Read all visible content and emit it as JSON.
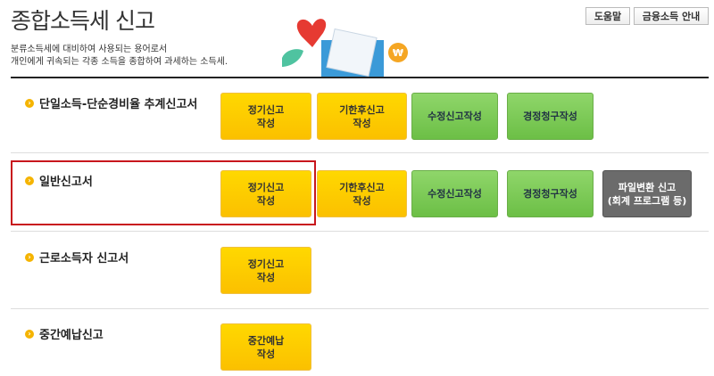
{
  "header": {
    "title": "종합소득세 신고",
    "desc_lines": [
      "분류소득세에 대비하여 사용되는 용어로서",
      "개인에게 귀속되는 각종 소득을 종합하여 과세하는 소득세."
    ],
    "help_label": "도움말",
    "finance_label": "금융소득 안내"
  },
  "sections": [
    {
      "label": "단일소득-단순경비율 추계신고서",
      "buttons": [
        "정기신고\n작성",
        "기한후신고\n작성",
        "수정신고작성",
        "경정청구작성"
      ]
    },
    {
      "label": "일반신고서",
      "highlighted": true,
      "buttons": [
        "정기신고\n작성",
        "기한후신고\n작성",
        "수정신고작성",
        "경정청구작성",
        "파일변환 신고\n(회계 프로그램 등)"
      ]
    },
    {
      "label": "근로소득자 신고서",
      "buttons": [
        "정기신고\n작성"
      ]
    },
    {
      "label": "중간예납신고",
      "buttons": [
        "중간예납\n작성"
      ]
    }
  ],
  "colors": {
    "yellow": "#fbc800",
    "green": "#7acb55",
    "gray": "#6b6b6b",
    "highlight": "#c8161d"
  }
}
